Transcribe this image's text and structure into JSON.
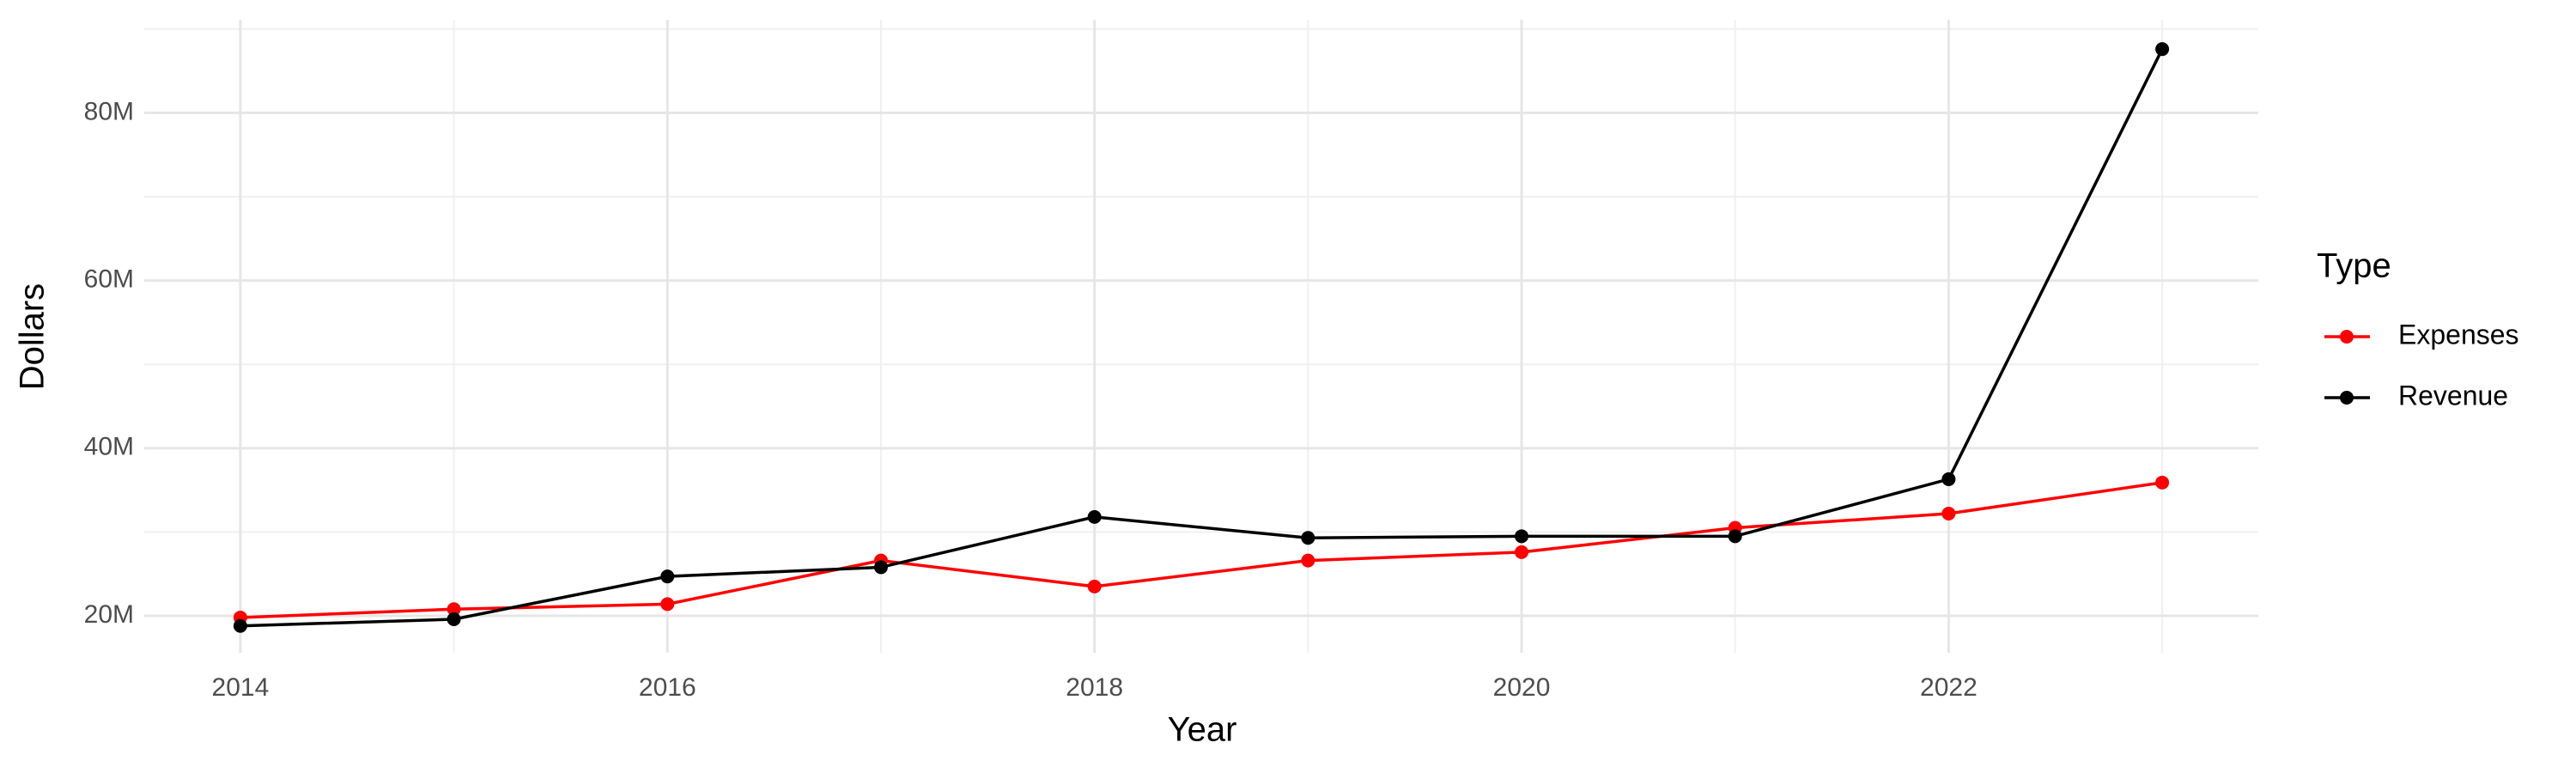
{
  "chart_data": {
    "type": "line",
    "x_label": "Year",
    "y_label": "Dollars",
    "legend_title": "Type",
    "x": [
      2014,
      2015,
      2016,
      2017,
      2018,
      2019,
      2020,
      2021,
      2022,
      2023
    ],
    "series": [
      {
        "name": "Expenses",
        "color": "#ff0000",
        "values": [
          19800000,
          20800000,
          21400000,
          26600000,
          23500000,
          26600000,
          27600000,
          30500000,
          32200000,
          35900000
        ]
      },
      {
        "name": "Revenue",
        "color": "#000000",
        "values": [
          18800000,
          19600000,
          24700000,
          25800000,
          31800000,
          29300000,
          29500000,
          29500000,
          36300000,
          87600000
        ]
      }
    ],
    "xlim": [
      2013.55,
      2023.45
    ],
    "xticks": [
      2014,
      2016,
      2018,
      2020,
      2022
    ],
    "ylim": [
      15600000,
      91100000
    ],
    "yticks": [
      {
        "value": 20000000,
        "label": "20M"
      },
      {
        "value": 40000000,
        "label": "40M"
      },
      {
        "value": 60000000,
        "label": "60M"
      },
      {
        "value": 80000000,
        "label": "80M"
      }
    ],
    "grid": true,
    "legend": "right"
  }
}
